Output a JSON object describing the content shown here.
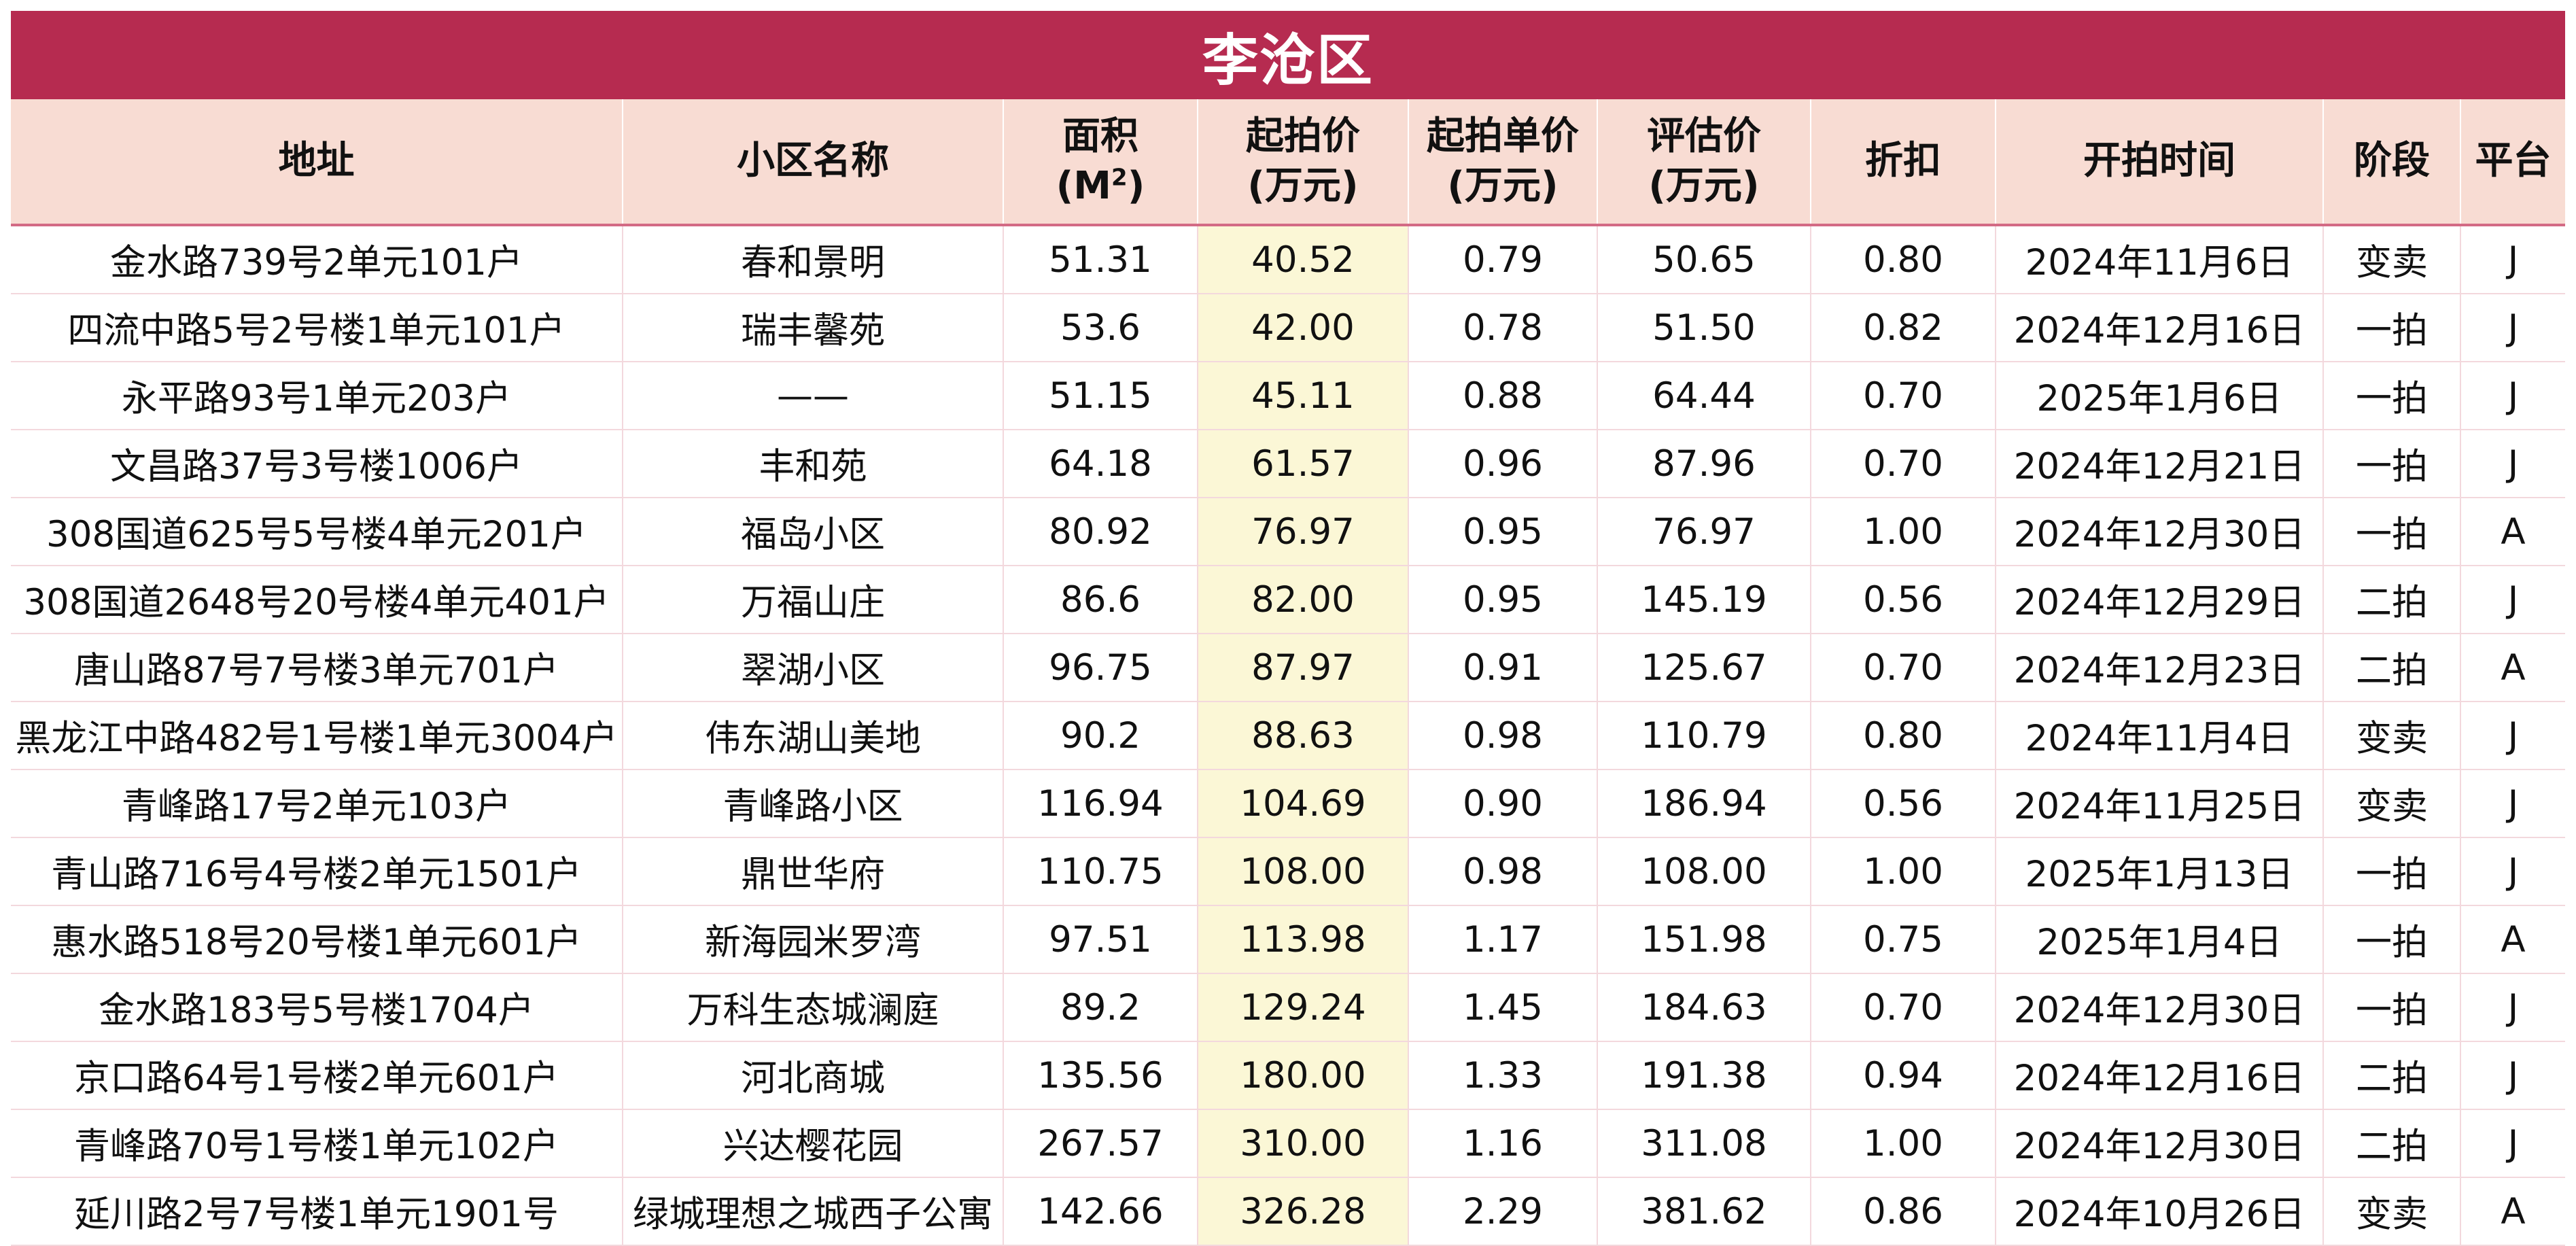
{
  "title": "李沧区",
  "headers": {
    "address": "地址",
    "community": "小区名称",
    "area_line1": "面积",
    "area_line2": "(M",
    "area_sup": "2",
    "area_line2_end": ")",
    "start_price_line1": "起拍价",
    "start_price_line2": "(万元)",
    "unit_price_line1": "起拍单价",
    "unit_price_line2": "(万元)",
    "valuation_line1": "评估价",
    "valuation_line2": "(万元)",
    "discount": "折扣",
    "start_time": "开拍时间",
    "stage": "阶段",
    "platform": "平台"
  },
  "rows": [
    {
      "address": "金水路739号2单元101户",
      "community": "春和景明",
      "area": "51.31",
      "start_price": "40.52",
      "unit_price": "0.79",
      "valuation": "50.65",
      "discount": "0.80",
      "date": "2024年11月6日",
      "stage": "变卖",
      "platform": "J"
    },
    {
      "address": "四流中路5号2号楼1单元101户",
      "community": "瑞丰馨苑",
      "area": "53.6",
      "start_price": "42.00",
      "unit_price": "0.78",
      "valuation": "51.50",
      "discount": "0.82",
      "date": "2024年12月16日",
      "stage": "一拍",
      "platform": "J"
    },
    {
      "address": "永平路93号1单元203户",
      "community": "——",
      "area": "51.15",
      "start_price": "45.11",
      "unit_price": "0.88",
      "valuation": "64.44",
      "discount": "0.70",
      "date": "2025年1月6日",
      "stage": "一拍",
      "platform": "J"
    },
    {
      "address": "文昌路37号3号楼1006户",
      "community": "丰和苑",
      "area": "64.18",
      "start_price": "61.57",
      "unit_price": "0.96",
      "valuation": "87.96",
      "discount": "0.70",
      "date": "2024年12月21日",
      "stage": "一拍",
      "platform": "J"
    },
    {
      "address": "308国道625号5号楼4单元201户",
      "community": "福岛小区",
      "area": "80.92",
      "start_price": "76.97",
      "unit_price": "0.95",
      "valuation": "76.97",
      "discount": "1.00",
      "date": "2024年12月30日",
      "stage": "一拍",
      "platform": "A"
    },
    {
      "address": "308国道2648号20号楼4单元401户",
      "community": "万福山庄",
      "area": "86.6",
      "start_price": "82.00",
      "unit_price": "0.95",
      "valuation": "145.19",
      "discount": "0.56",
      "date": "2024年12月29日",
      "stage": "二拍",
      "platform": "J"
    },
    {
      "address": "唐山路87号7号楼3单元701户",
      "community": "翠湖小区",
      "area": "96.75",
      "start_price": "87.97",
      "unit_price": "0.91",
      "valuation": "125.67",
      "discount": "0.70",
      "date": "2024年12月23日",
      "stage": "二拍",
      "platform": "A"
    },
    {
      "address": "黑龙江中路482号1号楼1单元3004户",
      "community": "伟东湖山美地",
      "area": "90.2",
      "start_price": "88.63",
      "unit_price": "0.98",
      "valuation": "110.79",
      "discount": "0.80",
      "date": "2024年11月4日",
      "stage": "变卖",
      "platform": "J"
    },
    {
      "address": "青峰路17号2单元103户",
      "community": "青峰路小区",
      "area": "116.94",
      "start_price": "104.69",
      "unit_price": "0.90",
      "valuation": "186.94",
      "discount": "0.56",
      "date": "2024年11月25日",
      "stage": "变卖",
      "platform": "J"
    },
    {
      "address": "青山路716号4号楼2单元1501户",
      "community": "鼎世华府",
      "area": "110.75",
      "start_price": "108.00",
      "unit_price": "0.98",
      "valuation": "108.00",
      "discount": "1.00",
      "date": "2025年1月13日",
      "stage": "一拍",
      "platform": "J"
    },
    {
      "address": "惠水路518号20号楼1单元601户",
      "community": "新海园米罗湾",
      "area": "97.51",
      "start_price": "113.98",
      "unit_price": "1.17",
      "valuation": "151.98",
      "discount": "0.75",
      "date": "2025年1月4日",
      "stage": "一拍",
      "platform": "A"
    },
    {
      "address": "金水路183号5号楼1704户",
      "community": "万科生态城澜庭",
      "area": "89.2",
      "start_price": "129.24",
      "unit_price": "1.45",
      "valuation": "184.63",
      "discount": "0.70",
      "date": "2024年12月30日",
      "stage": "一拍",
      "platform": "J"
    },
    {
      "address": "京口路64号1号楼2单元601户",
      "community": "河北商城",
      "area": "135.56",
      "start_price": "180.00",
      "unit_price": "1.33",
      "valuation": "191.38",
      "discount": "0.94",
      "date": "2024年12月16日",
      "stage": "二拍",
      "platform": "J"
    },
    {
      "address": "青峰路70号1号楼1单元102户",
      "community": "兴达樱花园",
      "area": "267.57",
      "start_price": "310.00",
      "unit_price": "1.16",
      "valuation": "311.08",
      "discount": "1.00",
      "date": "2024年12月30日",
      "stage": "二拍",
      "platform": "J"
    },
    {
      "address": "延川路2号7号楼1单元1901号",
      "community": "绿城理想之城西子公寓",
      "area": "142.66",
      "start_price": "326.28",
      "unit_price": "2.29",
      "valuation": "381.62",
      "discount": "0.86",
      "date": "2024年10月26日",
      "stage": "变卖",
      "platform": "A"
    }
  ]
}
